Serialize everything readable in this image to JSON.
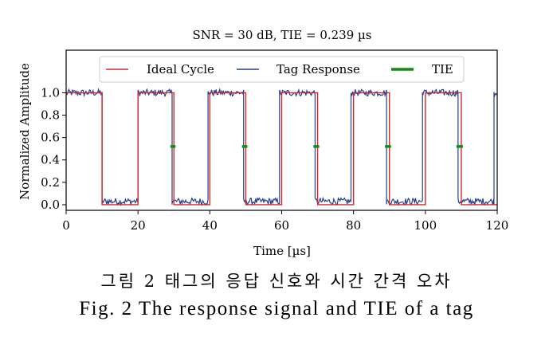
{
  "chart_data": {
    "type": "line",
    "title": "SNR = 30 dB, TIE = 0.239 µs",
    "xlabel": "Time [µs]",
    "ylabel": "Normalized Amplitude",
    "xlim": [
      0,
      120
    ],
    "ylim": [
      -0.05,
      1.38
    ],
    "x_ticks": [
      0,
      20,
      40,
      60,
      80,
      100,
      120
    ],
    "x_tick_labels": [
      "0",
      "20",
      "40",
      "60",
      "80",
      "100",
      "120"
    ],
    "y_ticks": [
      0.0,
      0.2,
      0.4,
      0.6,
      0.8,
      1.0
    ],
    "y_tick_labels": [
      "0.0",
      "0.2",
      "0.4",
      "0.6",
      "0.8",
      "1.0"
    ],
    "grid": false,
    "legend_position": "top-center",
    "period_us": 20,
    "series": [
      {
        "name": "Ideal Cycle",
        "color": "#d62728",
        "x": [
          0,
          10,
          10,
          20,
          20,
          30,
          30,
          40,
          40,
          50,
          50,
          60,
          60,
          70,
          70,
          80,
          80,
          90,
          90,
          100,
          100,
          110,
          110,
          120
        ],
        "y": [
          1,
          1,
          0,
          0,
          1,
          1,
          0,
          0,
          1,
          1,
          0,
          0,
          1,
          1,
          0,
          0,
          1,
          1,
          0,
          0,
          1,
          1,
          0,
          0
        ]
      },
      {
        "name": "Tag Response",
        "color": "#1f3f8f",
        "high_level": 1.0,
        "low_level": 0.03,
        "noise_amplitude": 0.03,
        "edges_x": [
          10,
          20,
          29.5,
          39.5,
          49.4,
          59.4,
          69.3,
          79.3,
          89.2,
          99.2,
          109.1,
          119.1
        ],
        "edges_type": [
          "fall",
          "rise",
          "fall",
          "rise",
          "fall",
          "rise",
          "fall",
          "rise",
          "fall",
          "rise",
          "fall",
          "rise"
        ]
      },
      {
        "name": "TIE",
        "color": "#138a13",
        "y_level": 0.52,
        "segments": [
          [
            29.5,
            30
          ],
          [
            49.4,
            50
          ],
          [
            69.3,
            70
          ],
          [
            89.2,
            90
          ],
          [
            109.1,
            110
          ]
        ]
      }
    ]
  },
  "caption": {
    "korean": "그림 2 태그의 응답 신호와 시간 간격 오차",
    "english": "Fig. 2 The response signal and TIE of a tag"
  }
}
